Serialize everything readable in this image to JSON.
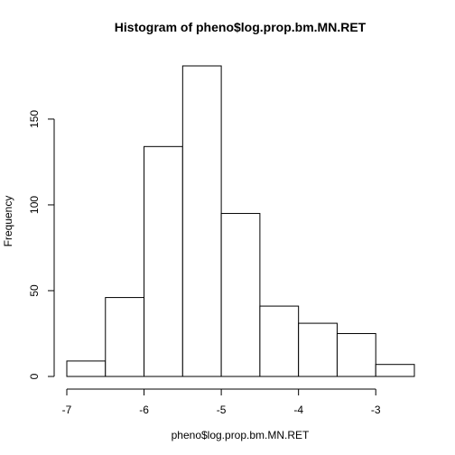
{
  "chart_data": {
    "type": "bar",
    "title": "Histogram of pheno$log.prop.bm.MN.RET",
    "xlabel": "pheno$log.prop.bm.MN.RET",
    "ylabel": "Frequency",
    "bins": [
      {
        "x0": -7.0,
        "x1": -6.5,
        "count": 9
      },
      {
        "x0": -6.5,
        "x1": -6.0,
        "count": 46
      },
      {
        "x0": -6.0,
        "x1": -5.5,
        "count": 134
      },
      {
        "x0": -5.5,
        "x1": -5.0,
        "count": 181
      },
      {
        "x0": -5.0,
        "x1": -4.5,
        "count": 95
      },
      {
        "x0": -4.5,
        "x1": -4.0,
        "count": 41
      },
      {
        "x0": -4.0,
        "x1": -3.5,
        "count": 31
      },
      {
        "x0": -3.5,
        "x1": -3.0,
        "count": 25
      },
      {
        "x0": -3.0,
        "x1": -2.5,
        "count": 7
      }
    ],
    "x_ticks": [
      -7,
      -6,
      -5,
      -4,
      -3
    ],
    "x_tick_labels": [
      "-7",
      "-6",
      "-5",
      "-4",
      "-3"
    ],
    "y_ticks": [
      0,
      50,
      100,
      150
    ],
    "y_tick_labels": [
      "0",
      "50",
      "100",
      "150"
    ],
    "xlim": [
      -7.0,
      -2.5
    ],
    "ylim": [
      0,
      181
    ],
    "grid": false,
    "legend": "none"
  }
}
